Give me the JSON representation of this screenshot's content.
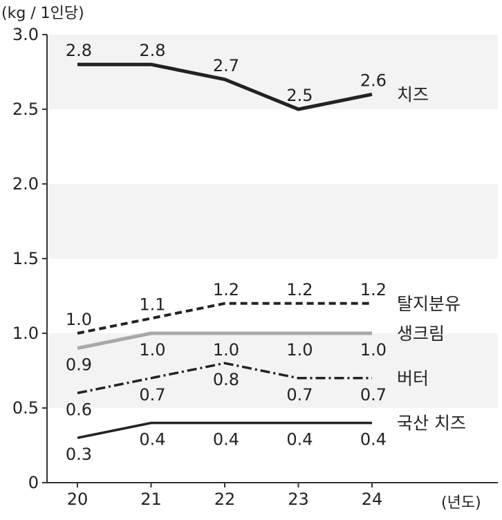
{
  "chart_data": {
    "type": "line",
    "ylabel": "(kg / 1인당)",
    "xlabel": "(년도)",
    "categories": [
      "20",
      "21",
      "22",
      "23",
      "24"
    ],
    "ylim": [
      0,
      3.0
    ],
    "yticks": [
      "0",
      "0.5",
      "1.0",
      "1.5",
      "2.0",
      "2.5",
      "3.0"
    ],
    "yticks_values": [
      0,
      0.5,
      1.0,
      1.5,
      2.0,
      2.5,
      3.0
    ],
    "grid": "alternating horizontal bands",
    "band_color": "#f3f3f3",
    "series": [
      {
        "name": "치즈",
        "values": [
          2.8,
          2.8,
          2.7,
          2.5,
          2.6
        ],
        "labels": [
          "2.8",
          "2.8",
          "2.7",
          "2.5",
          "2.6"
        ],
        "label_pos": "above",
        "style": "solid",
        "color": "#222222"
      },
      {
        "name": "탈지분유",
        "values": [
          1.0,
          1.1,
          1.2,
          1.2,
          1.2
        ],
        "labels": [
          "1.0",
          "1.1",
          "1.2",
          "1.2",
          "1.2"
        ],
        "label_pos": "above",
        "style": "dashed",
        "color": "#222222"
      },
      {
        "name": "생크림",
        "values": [
          0.9,
          1.0,
          1.0,
          1.0,
          1.0
        ],
        "labels": [
          "0.9",
          "1.0",
          "1.0",
          "1.0",
          "1.0"
        ],
        "label_pos": "below",
        "style": "solid",
        "color": "#a8a8a8"
      },
      {
        "name": "버터",
        "values": [
          0.6,
          0.7,
          0.8,
          0.7,
          0.7
        ],
        "labels": [
          "0.6",
          "0.7",
          "0.8",
          "0.7",
          "0.7"
        ],
        "label_pos": "below",
        "style": "dashdot",
        "color": "#222222"
      },
      {
        "name": "국산 치즈",
        "values": [
          0.3,
          0.4,
          0.4,
          0.4,
          0.4
        ],
        "labels": [
          "0.3",
          "0.4",
          "0.4",
          "0.4",
          "0.4"
        ],
        "label_pos": "below",
        "style": "solid-thin",
        "color": "#222222"
      }
    ]
  }
}
